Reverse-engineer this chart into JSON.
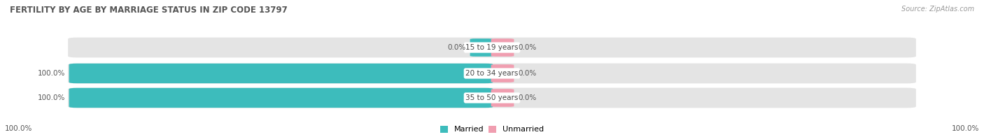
{
  "title": "FERTILITY BY AGE BY MARRIAGE STATUS IN ZIP CODE 13797",
  "source_text": "Source: ZipAtlas.com",
  "categories": [
    "15 to 19 years",
    "20 to 34 years",
    "35 to 50 years"
  ],
  "married_values": [
    0.0,
    100.0,
    100.0
  ],
  "unmarried_values": [
    0.0,
    0.0,
    0.0
  ],
  "married_color": "#3dbcbc",
  "unmarried_color": "#f09eb0",
  "bar_background": "#e4e4e4",
  "title_fontsize": 8.5,
  "label_fontsize": 7.5,
  "tick_fontsize": 7.5,
  "legend_fontsize": 8,
  "source_fontsize": 7,
  "x_left_label": "100.0%",
  "x_right_label": "100.0%",
  "background_color": "#ffffff",
  "title_color": "#555555",
  "source_color": "#999999",
  "label_color": "#444444",
  "pct_color": "#555555"
}
